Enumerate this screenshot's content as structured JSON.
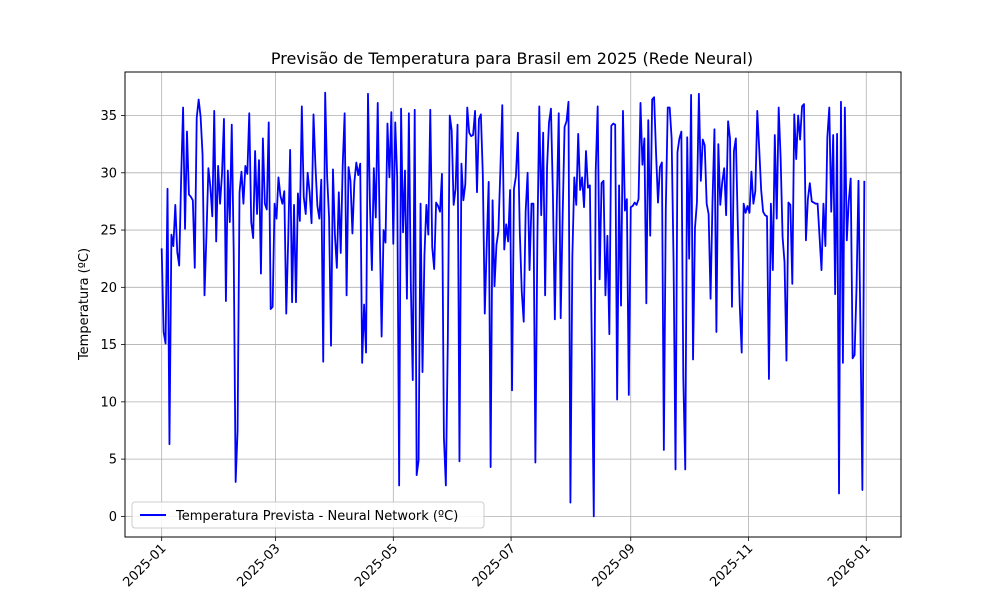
{
  "chart_data": {
    "type": "line",
    "title": "Previsão de Temperatura para Brasil em 2025 (Rede Neural)",
    "xlabel": "",
    "ylabel": "Temperatura (ºC)",
    "x_start": "2025-01-01",
    "x_end": "2025-12-31",
    "xlim": [
      "2024-12-13",
      "2026-01-19"
    ],
    "ylim": [
      -1.8,
      38.8
    ],
    "x_ticks": [
      "2025-01",
      "2025-03",
      "2025-05",
      "2025-07",
      "2025-09",
      "2025-11",
      "2026-01"
    ],
    "y_ticks": [
      0,
      5,
      10,
      15,
      20,
      25,
      30,
      35
    ],
    "grid": true,
    "legend_position": "lower-left",
    "color": "#0000ff",
    "series": [
      {
        "name": "Temperatura Prevista - Neural Network (ºC)",
        "values": [
          23.4,
          16.1,
          15.1,
          28.6,
          6.3,
          24.6,
          23.6,
          27.2,
          23.1,
          21.9,
          29.5,
          35.7,
          25.1,
          33.6,
          28.1,
          27.9,
          27.6,
          21.7,
          34.8,
          36.4,
          34.9,
          31.6,
          19.3,
          24.5,
          30.4,
          28.8,
          26.2,
          35.4,
          24.0,
          30.6,
          27.3,
          29.9,
          34.7,
          18.8,
          30.2,
          25.7,
          34.2,
          23.2,
          3.0,
          7.5,
          28.3,
          30.1,
          27.3,
          30.6,
          29.9,
          35.2,
          25.7,
          24.3,
          31.9,
          26.4,
          31.1,
          21.2,
          33.0,
          27.3,
          26.8,
          34.4,
          18.1,
          18.3,
          27.3,
          26.0,
          29.6,
          28.0,
          27.3,
          28.4,
          17.7,
          24.1,
          32.0,
          18.7,
          27.2,
          18.7,
          28.2,
          25.8,
          35.8,
          27.9,
          26.4,
          30.0,
          28.3,
          25.6,
          35.1,
          30.6,
          27.1,
          26.0,
          29.4,
          13.5,
          37.0,
          29.7,
          26.1,
          14.9,
          30.3,
          24.6,
          21.7,
          28.3,
          23.0,
          30.6,
          35.2,
          19.3,
          30.5,
          29.3,
          24.7,
          29.2,
          30.9,
          29.8,
          30.8,
          13.4,
          18.5,
          14.3,
          36.9,
          27.3,
          21.5,
          30.4,
          26.1,
          36.1,
          25.3,
          15.7,
          25.0,
          23.9,
          34.3,
          29.6,
          35.3,
          23.8,
          34.4,
          29.6,
          2.7,
          35.6,
          24.8,
          30.2,
          19.0,
          35.2,
          20.3,
          11.9,
          35.5,
          3.6,
          4.9,
          27.3,
          12.6,
          22.8,
          27.2,
          24.6,
          35.5,
          23.5,
          21.6,
          27.4,
          27.1,
          26.6,
          29.9,
          6.9,
          2.7,
          15.3,
          35.0,
          33.7,
          27.2,
          28.6,
          34.2,
          4.8,
          30.8,
          27.6,
          29.0,
          35.7,
          33.5,
          33.2,
          33.3,
          35.4,
          28.3,
          34.7,
          35.1,
          29.8,
          17.7,
          23.7,
          29.2,
          4.3,
          27.6,
          20.1,
          23.7,
          24.9,
          30.2,
          35.9,
          23.3,
          25.5,
          24.0,
          28.5,
          11.0,
          28.6,
          29.7,
          33.5,
          24.8,
          19.6,
          17.0,
          26.6,
          30.0,
          21.5,
          27.3,
          27.3,
          4.7,
          23.9,
          35.8,
          26.3,
          33.5,
          19.3,
          30.5,
          34.4,
          35.6,
          28.1,
          17.2,
          27.1,
          35.2,
          17.3,
          26.2,
          34.0,
          34.5,
          36.2,
          1.2,
          22.7,
          29.6,
          27.2,
          33.4,
          28.5,
          29.6,
          27.0,
          31.9,
          28.7,
          28.9,
          14.7,
          0.0,
          30.2,
          35.8,
          20.7,
          29.1,
          29.3,
          19.3,
          24.5,
          15.9,
          34.1,
          34.3,
          34.2,
          10.2,
          28.9,
          18.4,
          35.4,
          26.7,
          27.7,
          10.6,
          27.0,
          27.1,
          27.4,
          27.2,
          27.7,
          36.1,
          30.7,
          33.0,
          18.6,
          34.6,
          24.5,
          36.4,
          36.6,
          31.7,
          27.4,
          30.5,
          30.9,
          5.8,
          26.8,
          35.7,
          35.7,
          33.0,
          22.1,
          4.1,
          31.8,
          33.0,
          33.6,
          12.1,
          4.1,
          33.1,
          22.5,
          36.8,
          13.7,
          25.2,
          27.4,
          36.9,
          29.3,
          32.9,
          32.4,
          27.3,
          26.4,
          19.0,
          27.5,
          33.8,
          16.1,
          32.5,
          27.2,
          29.2,
          30.4,
          26.3,
          34.5,
          33.0,
          18.3,
          31.9,
          33.0,
          25.4,
          18.4,
          14.3,
          27.3,
          26.5,
          27.1,
          26.5,
          30.1,
          27.3,
          28.4,
          35.4,
          32.1,
          28.5,
          26.6,
          26.3,
          26.2,
          12.0,
          27.3,
          21.5,
          33.3,
          26.0,
          35.7,
          31.3,
          24.4,
          22.2,
          13.6,
          27.4,
          27.2,
          20.3,
          35.1,
          31.2,
          35.0,
          32.9,
          35.8,
          36.0,
          24.1,
          27.7,
          29.1,
          27.5,
          27.4,
          27.3,
          27.3,
          24.4,
          21.5,
          27.3,
          23.6,
          33.1,
          35.7,
          26.6,
          33.3,
          19.4,
          33.4,
          2.0,
          36.2,
          13.4,
          35.7,
          24.1,
          27.5,
          29.5,
          13.8,
          14.1,
          20.0,
          29.3,
          16.4,
          2.3,
          29.3
        ]
      }
    ]
  }
}
